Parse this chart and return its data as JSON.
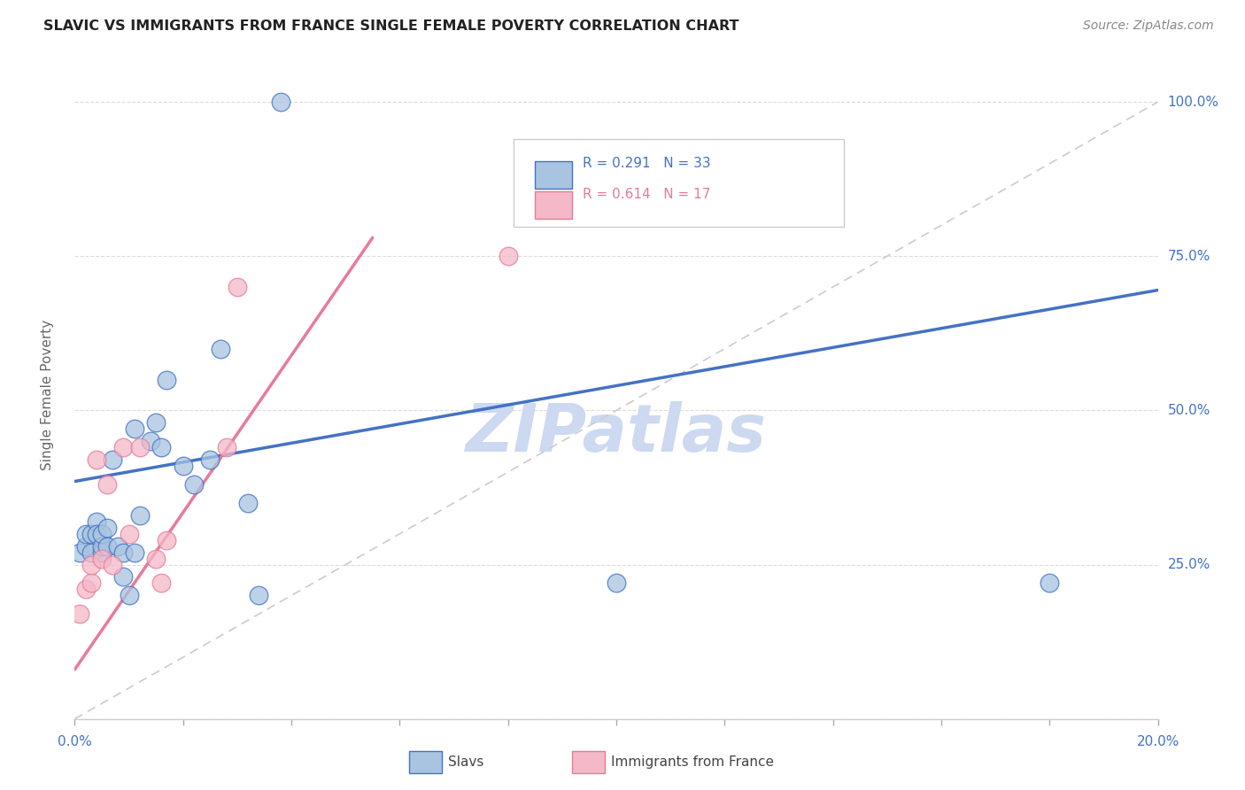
{
  "title": "SLAVIC VS IMMIGRANTS FROM FRANCE SINGLE FEMALE POVERTY CORRELATION CHART",
  "source": "Source: ZipAtlas.com",
  "ylabel": "Single Female Poverty",
  "ylabel_right_ticks": [
    "100.0%",
    "75.0%",
    "50.0%",
    "25.0%"
  ],
  "legend_label_slavs": "Slavs",
  "legend_label_france": "Immigrants from France",
  "slavic_color": "#a8c4e0",
  "france_color": "#f4b8c8",
  "slavic_line_color": "#4472c4",
  "france_line_color": "#e87a9a",
  "diagonal_color": "#cccccc",
  "title_color": "#222222",
  "source_color": "#888888",
  "axis_label_color": "#4472c4",
  "watermark_color": "#ccd9f0",
  "background_color": "#ffffff",
  "slavic_x": [
    0.001,
    0.002,
    0.002,
    0.003,
    0.003,
    0.004,
    0.004,
    0.005,
    0.005,
    0.005,
    0.006,
    0.006,
    0.007,
    0.008,
    0.009,
    0.009,
    0.01,
    0.011,
    0.011,
    0.012,
    0.014,
    0.015,
    0.016,
    0.017,
    0.02,
    0.022,
    0.025,
    0.027,
    0.032,
    0.034,
    0.038,
    0.1,
    0.18
  ],
  "slavic_y": [
    0.27,
    0.28,
    0.3,
    0.27,
    0.3,
    0.32,
    0.3,
    0.27,
    0.28,
    0.3,
    0.28,
    0.31,
    0.42,
    0.28,
    0.27,
    0.23,
    0.2,
    0.27,
    0.47,
    0.33,
    0.45,
    0.48,
    0.44,
    0.55,
    0.41,
    0.38,
    0.42,
    0.6,
    0.35,
    0.2,
    1.0,
    0.22,
    0.22
  ],
  "france_x": [
    0.001,
    0.002,
    0.003,
    0.003,
    0.004,
    0.005,
    0.006,
    0.007,
    0.009,
    0.01,
    0.012,
    0.015,
    0.016,
    0.017,
    0.028,
    0.03,
    0.08
  ],
  "france_y": [
    0.17,
    0.21,
    0.22,
    0.25,
    0.42,
    0.26,
    0.38,
    0.25,
    0.44,
    0.3,
    0.44,
    0.26,
    0.22,
    0.29,
    0.44,
    0.7,
    0.75
  ],
  "slavic_R": 0.291,
  "slavic_N": 33,
  "france_R": 0.614,
  "france_N": 17,
  "xmin": 0.0,
  "xmax": 0.2,
  "ymin": 0.0,
  "ymax": 1.05,
  "slavic_trend_x0": 0.0,
  "slavic_trend_y0": 0.385,
  "slavic_trend_x1": 0.2,
  "slavic_trend_y1": 0.695,
  "france_trend_x0": 0.0,
  "france_trend_y0": 0.08,
  "france_trend_x1": 0.055,
  "france_trend_y1": 0.78
}
